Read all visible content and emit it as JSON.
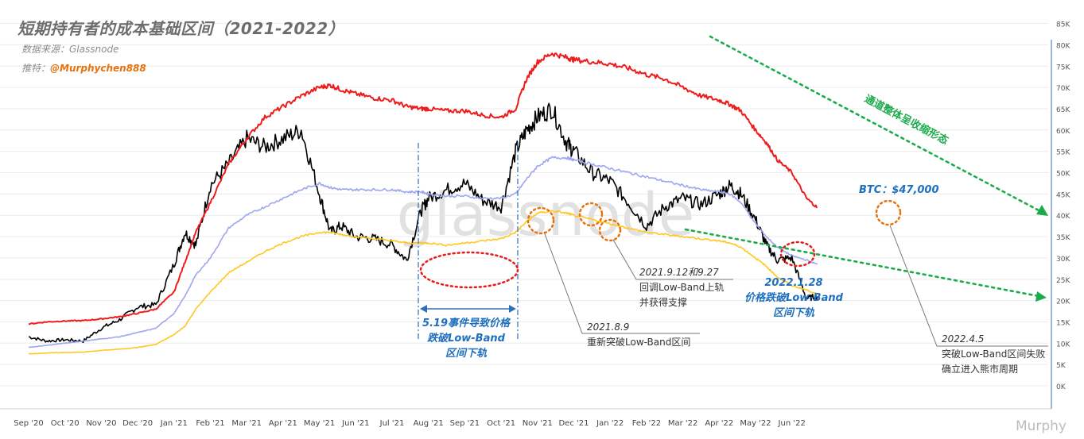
{
  "header": {
    "title": "短期持有者的成本基础区间（2021-2022）",
    "source": "数据来源：Glassnode",
    "push_prefix": "推特：",
    "push_handle": "@Murphychen888"
  },
  "watermark_center": "glassnode",
  "watermark_corner": "Murphy",
  "colors": {
    "price": "#000000",
    "upper_band": "#ee1c1c",
    "mid_band": "#9ea6f0",
    "low_band": "#ffc821",
    "green_arrow": "#1aab4b",
    "orange_circle": "#e8710a",
    "red_circle": "#e51c1c",
    "blue_annotation": "#1f6fbf",
    "grid": "#ececec"
  },
  "annotations": {
    "trend_label": "通道整体呈收缩形态",
    "btc_peak": "BTC：$47,000",
    "event_519_line1": "5.19事件导致价格",
    "event_519_line2": "跌破Low-Band",
    "event_519_line3": "区间下轨",
    "date_0809": "2021.8.9",
    "note_0809": "重新突破Low-Band区间",
    "date_0912": "2021.9.12和9.27",
    "note_0912_line1": "回调Low-Band上轨",
    "note_0912_line2": "并获得支撑",
    "date_0128": "2022.1.28",
    "note_0128_line1": "价格跌破Low-Band",
    "note_0128_line2": "区间下轨",
    "date_0405": "2022.4.5",
    "note_0405_line1": "突破Low-Band区间失败",
    "note_0405_line2": "确立进入熊市周期"
  },
  "chart_data": {
    "type": "line",
    "title": "短期持有者的成本基础区间（2021-2022）",
    "x_ticks": [
      "Sep '20",
      "Oct '20",
      "Nov '20",
      "Dec '20",
      "Jan '21",
      "Feb '21",
      "Mar '21",
      "Apr '21",
      "May '21",
      "Jun '21",
      "Jul '21",
      "Aug '21",
      "Sep '21",
      "Oct '21",
      "Nov '21",
      "Dec '21",
      "Jan '22",
      "Feb '22",
      "Mar '22",
      "Apr '22",
      "May '22",
      "Jun '22"
    ],
    "y_ticks": [
      "0K",
      "5K",
      "10K",
      "15K",
      "20K",
      "25K",
      "30K",
      "35K",
      "40K",
      "45K",
      "50K",
      "55K",
      "60K",
      "65K",
      "70K",
      "75K",
      "80K",
      "85K"
    ],
    "ylim": [
      0,
      87000
    ],
    "x_unit": "month index (0 = Sep '20)",
    "x": [
      0,
      0.5,
      1,
      1.5,
      2,
      2.5,
      3,
      3.5,
      4,
      4.3,
      4.6,
      5,
      5.5,
      6,
      6.5,
      7,
      7.5,
      8,
      8.3,
      8.6,
      9,
      9.5,
      10,
      10.4,
      10.8,
      11,
      11.5,
      12,
      12.5,
      13,
      13.4,
      13.7,
      14,
      14.4,
      14.8,
      15,
      15.5,
      16,
      16.5,
      17,
      17.5,
      18,
      18.5,
      19,
      19.3,
      19.6,
      20,
      20.3,
      20.6,
      21,
      21.4,
      21.7
    ],
    "series": [
      {
        "name": "price",
        "values": [
          11500,
          10500,
          10800,
          10500,
          13500,
          15500,
          18500,
          19000,
          28500,
          36000,
          33000,
          47000,
          52000,
          58000,
          56000,
          58000,
          60000,
          45000,
          36000,
          37500,
          35000,
          34500,
          33000,
          29500,
          41000,
          44000,
          46000,
          47500,
          43500,
          42000,
          55000,
          60000,
          63000,
          65000,
          57000,
          55000,
          50000,
          48000,
          43000,
          37500,
          42000,
          44000,
          42500,
          45000,
          47000,
          45000,
          39000,
          33000,
          29500,
          30000,
          20500,
          21000
        ]
      },
      {
        "name": "upper",
        "values": [
          14500,
          15000,
          15200,
          15300,
          15700,
          16200,
          17000,
          18000,
          22000,
          29000,
          36000,
          43000,
          52000,
          58000,
          63000,
          65500,
          68000,
          70000,
          70500,
          69500,
          68500,
          67500,
          67000,
          65500,
          65000,
          65000,
          64500,
          64500,
          63500,
          63000,
          65000,
          72000,
          76000,
          78000,
          77000,
          76500,
          76000,
          75500,
          74500,
          73000,
          72000,
          70000,
          68000,
          67000,
          66000,
          64500,
          60000,
          57000,
          53000,
          50000,
          44000,
          41800
        ]
      },
      {
        "name": "mid",
        "values": [
          9000,
          9500,
          10000,
          10500,
          11000,
          11500,
          12500,
          13500,
          17000,
          21000,
          26000,
          30000,
          37000,
          40000,
          42000,
          44000,
          46000,
          47500,
          46500,
          46000,
          46000,
          46000,
          46000,
          45500,
          45500,
          45000,
          44500,
          44500,
          44000,
          44000,
          45000,
          48500,
          51500,
          53500,
          53500,
          53000,
          52000,
          51000,
          50000,
          49000,
          48000,
          47000,
          46000,
          45500,
          45000,
          43000,
          38000,
          35000,
          32500,
          30500,
          29500,
          28500
        ]
      },
      {
        "name": "low",
        "values": [
          7500,
          7700,
          7800,
          7900,
          8300,
          8600,
          9000,
          9700,
          12000,
          14000,
          18000,
          22000,
          26500,
          29000,
          31500,
          33500,
          35000,
          36000,
          36000,
          35500,
          35000,
          34500,
          34000,
          33500,
          33500,
          33500,
          33000,
          33500,
          34000,
          34500,
          36000,
          38500,
          40500,
          41000,
          40500,
          40000,
          39000,
          38000,
          37000,
          36000,
          35500,
          35000,
          34500,
          34000,
          33500,
          32500,
          30000,
          28000,
          25500,
          23500,
          22500,
          21500
        ]
      }
    ]
  }
}
